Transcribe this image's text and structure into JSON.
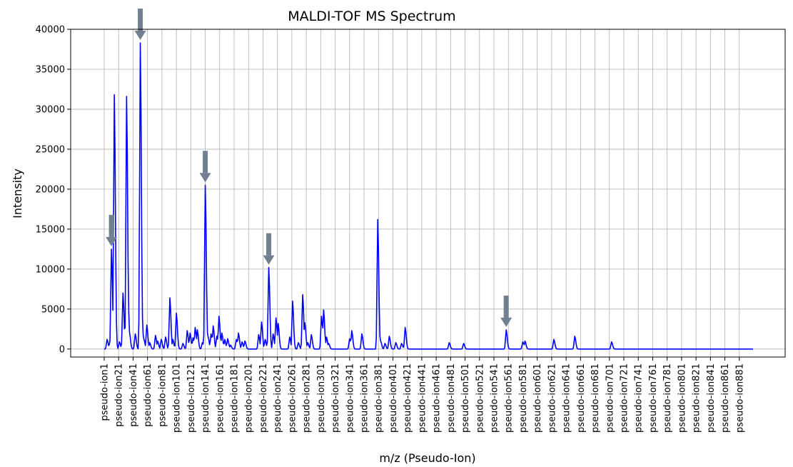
{
  "chart_data": {
    "type": "line",
    "title": "MALDI-TOF MS Spectrum",
    "xlabel": "m/z (Pseudo-Ion)",
    "ylabel": "Intensity",
    "ylim": [
      -1000,
      40000
    ],
    "yticks": [
      0,
      5000,
      10000,
      15000,
      20000,
      25000,
      30000,
      35000,
      40000
    ],
    "x_count": 900,
    "x_label_prefix": "pseudo-ion",
    "x_tick_step": 20,
    "grid": true,
    "line_color": "#0000ff",
    "arrow_color": "#708090",
    "series": [
      {
        "peaks": [
          [
            5,
            1200
          ],
          [
            9,
            1000
          ],
          [
            11,
            12500
          ],
          [
            14,
            9000
          ],
          [
            15,
            31800
          ],
          [
            16,
            5000
          ],
          [
            22,
            900
          ],
          [
            27,
            7000
          ],
          [
            32,
            31600
          ],
          [
            34,
            6000
          ],
          [
            36,
            2000
          ],
          [
            44,
            1900
          ],
          [
            51,
            38300
          ],
          [
            53,
            5000
          ],
          [
            56,
            1200
          ],
          [
            60,
            3000
          ],
          [
            64,
            800
          ],
          [
            72,
            1700
          ],
          [
            75,
            1000
          ],
          [
            80,
            1200
          ],
          [
            86,
            1500
          ],
          [
            92,
            6400
          ],
          [
            96,
            1200
          ],
          [
            101,
            4500
          ],
          [
            110,
            700
          ],
          [
            116,
            2300
          ],
          [
            120,
            2000
          ],
          [
            124,
            1400
          ],
          [
            127,
            2700
          ],
          [
            130,
            2400
          ],
          [
            137,
            800
          ],
          [
            141,
            20500
          ],
          [
            145,
            1500
          ],
          [
            149,
            1900
          ],
          [
            152,
            2900
          ],
          [
            157,
            1600
          ],
          [
            160,
            4100
          ],
          [
            164,
            2000
          ],
          [
            168,
            1200
          ],
          [
            172,
            1300
          ],
          [
            176,
            500
          ],
          [
            184,
            1200
          ],
          [
            187,
            2000
          ],
          [
            192,
            900
          ],
          [
            196,
            1000
          ],
          [
            215,
            1800
          ],
          [
            219,
            3400
          ],
          [
            224,
            1200
          ],
          [
            229,
            10200
          ],
          [
            235,
            1900
          ],
          [
            239,
            3900
          ],
          [
            242,
            3200
          ],
          [
            258,
            1500
          ],
          [
            262,
            6000
          ],
          [
            270,
            800
          ],
          [
            276,
            6800
          ],
          [
            279,
            3300
          ],
          [
            283,
            800
          ],
          [
            288,
            1800
          ],
          [
            302,
            4100
          ],
          [
            305,
            4900
          ],
          [
            309,
            1500
          ],
          [
            312,
            700
          ],
          [
            341,
            1300
          ],
          [
            344,
            2300
          ],
          [
            358,
            1900
          ],
          [
            380,
            16200
          ],
          [
            384,
            1000
          ],
          [
            390,
            700
          ],
          [
            396,
            1600
          ],
          [
            405,
            800
          ],
          [
            413,
            700
          ],
          [
            418,
            2700
          ],
          [
            479,
            800
          ],
          [
            499,
            700
          ],
          [
            558,
            2400
          ],
          [
            581,
            900
          ],
          [
            584,
            1000
          ],
          [
            624,
            1200
          ],
          [
            653,
            1600
          ],
          [
            704,
            900
          ]
        ]
      }
    ],
    "arrows_at": [
      11,
      51,
      141,
      229,
      558
    ]
  }
}
